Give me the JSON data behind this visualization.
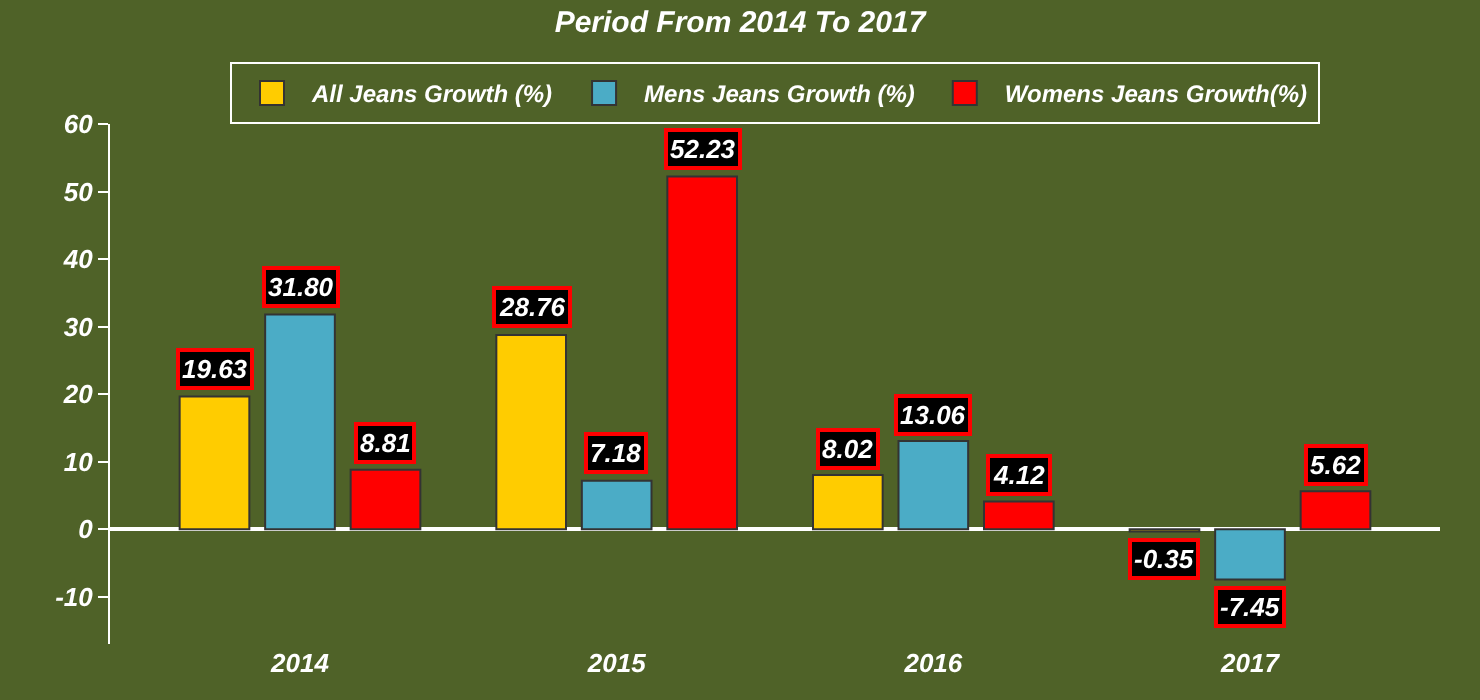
{
  "chart_data": {
    "type": "bar",
    "title": "Period From 2014 To 2017",
    "categories": [
      "2014",
      "2015",
      "2016",
      "2017"
    ],
    "series": [
      {
        "name": "All Jeans Growth (%)",
        "color": "#ffcc00",
        "values": [
          19.63,
          28.76,
          8.02,
          -0.35
        ]
      },
      {
        "name": "Mens Jeans Growth (%)",
        "color": "#4bacc6",
        "values": [
          31.8,
          7.18,
          13.06,
          -7.45
        ]
      },
      {
        "name": "Womens Jeans Growth(%)",
        "color": "#ff0000",
        "values": [
          8.81,
          52.23,
          4.12,
          5.62
        ]
      }
    ],
    "value_labels": [
      [
        "19.63",
        "28.76",
        "8.02",
        "-0.35"
      ],
      [
        "31.80",
        "7.18",
        "13.06",
        "-7.45"
      ],
      [
        "8.81",
        "52.23",
        "4.12",
        "5.62"
      ]
    ],
    "ylim": [
      -17,
      60
    ],
    "yticks": [
      -10,
      0,
      10,
      20,
      30,
      40,
      50,
      60
    ],
    "legend": "top"
  }
}
